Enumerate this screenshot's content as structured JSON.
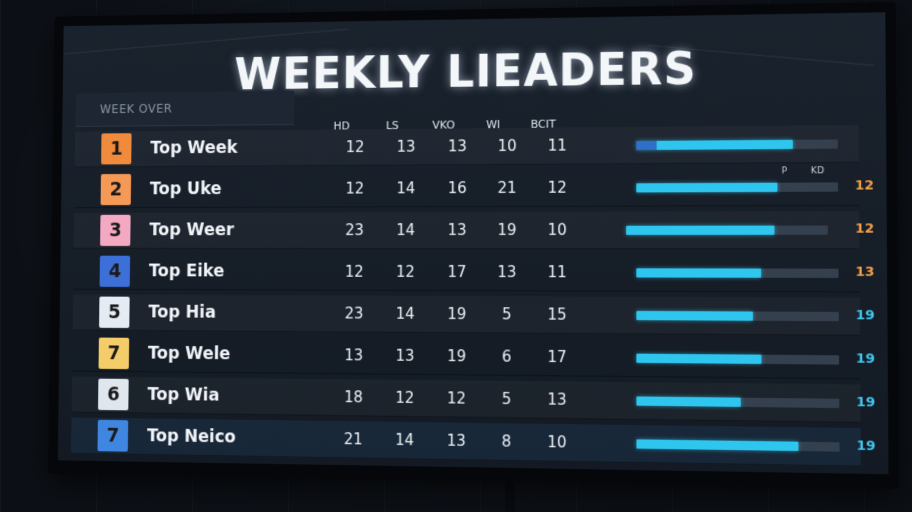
{
  "board": {
    "title": "WEEKLY LIEADERS",
    "subheader": "WEEK OVER",
    "columns": [
      "HD",
      "LS",
      "VKO",
      "WI",
      "BCIT"
    ],
    "right_columns": [
      "P",
      "KD"
    ],
    "bar_color": "#2ec6ef",
    "rows": [
      {
        "rank": "1",
        "rank_color": "#f08a3c",
        "name": "Top Week",
        "vals": [
          "12",
          "13",
          "13",
          "10",
          "11"
        ],
        "bar": 0.78,
        "score": "",
        "score_color": "#f5a04a"
      },
      {
        "rank": "2",
        "rank_color": "#f59a56",
        "name": "Top Uke",
        "vals": [
          "12",
          "14",
          "16",
          "21",
          "12"
        ],
        "bar": 0.7,
        "score": "12",
        "score_color": "#f5a04a"
      },
      {
        "rank": "3",
        "rank_color": "#f4a9c2",
        "name": "Top Weer",
        "vals": [
          "23",
          "14",
          "13",
          "19",
          "10"
        ],
        "bar": 0.74,
        "score": "12",
        "score_color": "#f5a04a"
      },
      {
        "rank": "4",
        "rank_color": "#3d6fd8",
        "name": "Top Eike",
        "vals": [
          "12",
          "12",
          "17",
          "13",
          "11"
        ],
        "bar": 0.62,
        "score": "13",
        "score_color": "#f5a04a"
      },
      {
        "rank": "5",
        "rank_color": "#e4ebf2",
        "name": "Top Hia",
        "vals": [
          "23",
          "14",
          "19",
          "5",
          "15"
        ],
        "bar": 0.58,
        "score": "19",
        "score_color": "#3ec9f0"
      },
      {
        "rank": "7",
        "rank_color": "#f4cd6a",
        "name": "Top Wele",
        "vals": [
          "13",
          "13",
          "19",
          "6",
          "17"
        ],
        "bar": 0.62,
        "score": "19",
        "score_color": "#3ec9f0"
      },
      {
        "rank": "6",
        "rank_color": "#dfe6ee",
        "name": "Top Wia",
        "vals": [
          "18",
          "12",
          "12",
          "5",
          "13"
        ],
        "bar": 0.52,
        "score": "19",
        "score_color": "#3ec9f0"
      },
      {
        "rank": "7",
        "rank_color": "#3f86e0",
        "name": "Top Neico",
        "vals": [
          "21",
          "14",
          "13",
          "8",
          "10"
        ],
        "bar": 0.8,
        "score": "19",
        "score_color": "#3ec9f0"
      }
    ]
  }
}
